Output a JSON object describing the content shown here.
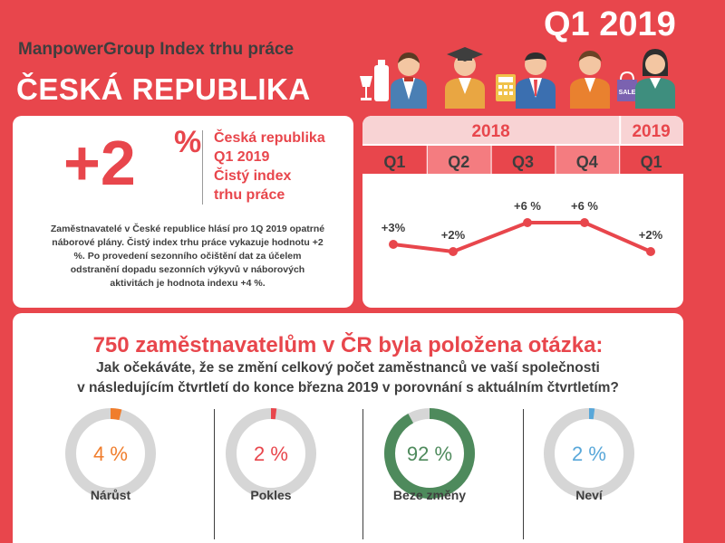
{
  "header": {
    "brand": "ManpowerGroup Index trhu práce",
    "country": "ČESKÁ REPUBLIKA",
    "quarter": "Q1 2019"
  },
  "summary": {
    "value_number": "+2",
    "value_suffix": "%",
    "caption_lines": [
      "Česká republika",
      "Q1 2019",
      "Čistý index",
      "trhu práce"
    ],
    "description": "Zaměstnavatelé v České republice hlásí pro 1Q 2019 opatrné náborové plány. Čistý index trhu práce vykazuje hodnotu +2 %. Po provedení sezonního očištění dat za účelem odstranění dopadu sezonních výkyvů v náborových aktivitách je hodnota indexu +4 %."
  },
  "colors": {
    "red": "#e8464c",
    "orange": "#f07d2c",
    "green": "#4e8a5c",
    "blue": "#58a7d9",
    "gray": "#d6d6d6",
    "dark": "#3e3e3e"
  },
  "icons": [
    "wine-bottle-icon",
    "waiter-icon",
    "graduate-icon",
    "calculator-icon",
    "businessman-icon",
    "worker-icon",
    "shopping-bag-icon",
    "saleswoman-icon"
  ],
  "figures": {
    "sale_text": "SALE"
  },
  "chart_data": [
    {
      "type": "line",
      "years": [
        {
          "label": "2018",
          "quarters": 4
        },
        {
          "label": "2019",
          "quarters": 1
        }
      ],
      "categories": [
        "Q1",
        "Q2",
        "Q3",
        "Q4",
        "Q1"
      ],
      "values": [
        3,
        2,
        6,
        6,
        2
      ],
      "labels": [
        "+3%",
        "+2%",
        "+6 %",
        "+6 %",
        "+2%"
      ],
      "ylim": [
        0,
        7
      ]
    },
    {
      "type": "pie",
      "title": "750 zaměstnavatelům v ČR byla položena otázka:",
      "question_lines": [
        "Jak očekáváte, že se změní celkový počet zaměstnanců ve vaší společnosti",
        "v následujícím čtvrtletí do konce března 2019 v porovnání s aktuálním čtvrtletím?"
      ],
      "slices": [
        {
          "label": "Nárůst",
          "value": 4,
          "display": "4 %",
          "color": "#f07d2c"
        },
        {
          "label": "Pokles",
          "value": 2,
          "display": "2 %",
          "color": "#e8464c"
        },
        {
          "label": "Beze změny",
          "value": 92,
          "display": "92 %",
          "color": "#4e8a5c"
        },
        {
          "label": "Neví",
          "value": 2,
          "display": "2 %",
          "color": "#58a7d9"
        }
      ]
    }
  ]
}
